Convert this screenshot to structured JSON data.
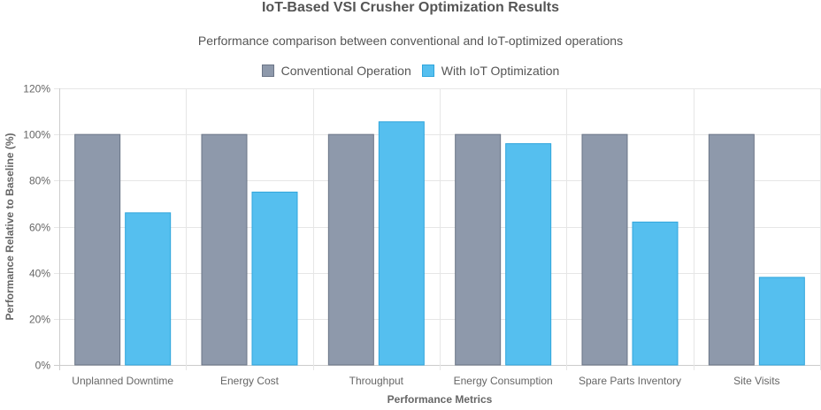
{
  "chart_data": {
    "type": "bar",
    "title": "IoT-Based VSI Crusher Optimization Results",
    "subtitle": "Performance comparison between conventional and IoT-optimized operations",
    "categories": [
      "Unplanned Downtime",
      "Energy Cost",
      "Throughput",
      "Energy Consumption",
      "Spare Parts Inventory",
      "Site Visits"
    ],
    "series": [
      {
        "name": "Conventional Operation",
        "values": [
          100,
          100,
          100,
          100,
          100,
          100
        ],
        "color": "#8e99ab",
        "border": "#6b7587"
      },
      {
        "name": "With IoT Optimization",
        "values": [
          66,
          75,
          105.5,
          96,
          62,
          38
        ],
        "color": "#55bfef",
        "border": "#2fa5dc"
      }
    ],
    "xlabel": "Performance Metrics",
    "ylabel": "Performance Relative to Baseline (%)",
    "ylim": [
      0,
      120
    ],
    "yticks": [
      "0%",
      "20%",
      "40%",
      "60%",
      "80%",
      "100%",
      "120%"
    ],
    "grid": true,
    "legend_position": "top"
  }
}
